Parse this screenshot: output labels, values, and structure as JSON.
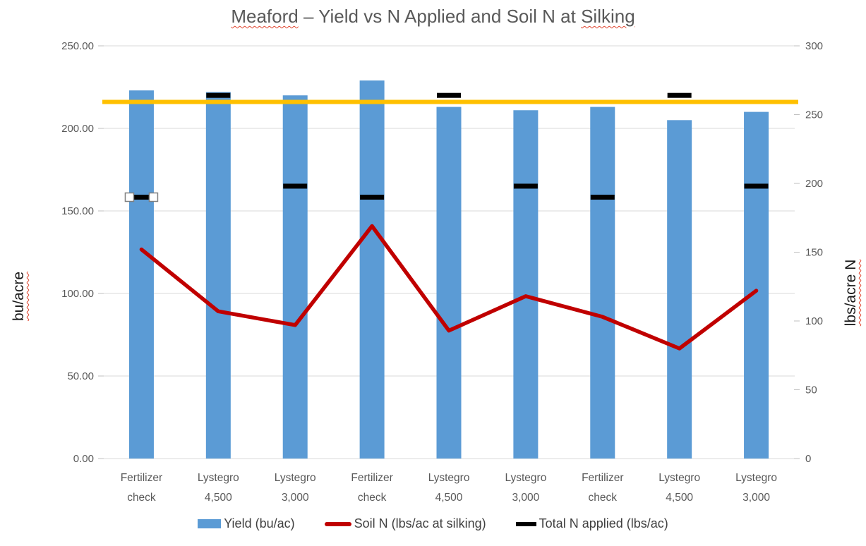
{
  "title": {
    "part1": "Meaford",
    "part2": " – Yield vs N Applied and Soil N at ",
    "part3": "Silking"
  },
  "chart_data": {
    "type": "bar",
    "title": "Meaford – Yield vs N Applied and Soil N at Silking",
    "categories": [
      "Fertilizer check",
      "Lystegro 4,500",
      "Lystegro 3,000",
      "Fertilizer check",
      "Lystegro 4,500",
      "Lystegro 3,000",
      "Fertilizer check",
      "Lystegro 4,500",
      "Lystegro 3,000"
    ],
    "series": [
      {
        "name": "Yield (bu/ac)",
        "type": "bar",
        "axis": "left",
        "color": "#5B9BD5",
        "values": [
          223,
          222,
          220,
          229,
          213,
          211,
          213,
          205,
          210
        ]
      },
      {
        "name": "Soil N (lbs/ac at silking)",
        "type": "line",
        "axis": "right",
        "color": "#C00000",
        "values": [
          152,
          107,
          97,
          169,
          93,
          118,
          103,
          80,
          122
        ]
      },
      {
        "name": "Total N applied (lbs/ac)",
        "type": "dash",
        "axis": "right",
        "color": "#000000",
        "values": [
          190,
          264,
          198,
          190,
          264,
          198,
          190,
          264,
          198
        ]
      }
    ],
    "reference_line": {
      "axis": "left",
      "value": 216,
      "color": "#FFC000"
    },
    "selection": {
      "series_index": 2,
      "point_index": 0
    },
    "axes": {
      "left": {
        "label": "bu/acre",
        "min": 0,
        "max": 250,
        "tick_labels": [
          "0.00",
          "50.00",
          "100.00",
          "150.00",
          "200.00",
          "250.00"
        ]
      },
      "right": {
        "label": "lbs/acre N",
        "min": 0,
        "max": 300,
        "tick_labels": [
          "0",
          "50",
          "100",
          "150",
          "200",
          "250",
          "300"
        ]
      }
    },
    "grid": true,
    "legend_position": "bottom",
    "style": {
      "gridline_color": "#D9D9D9",
      "tick_color": "#BFBFBF",
      "axis_text_color": "#595959",
      "legend_text_color": "#404040",
      "title_color": "#595959",
      "selection_handle_fill": "#FFFFFF",
      "selection_handle_border": "#808080"
    }
  }
}
